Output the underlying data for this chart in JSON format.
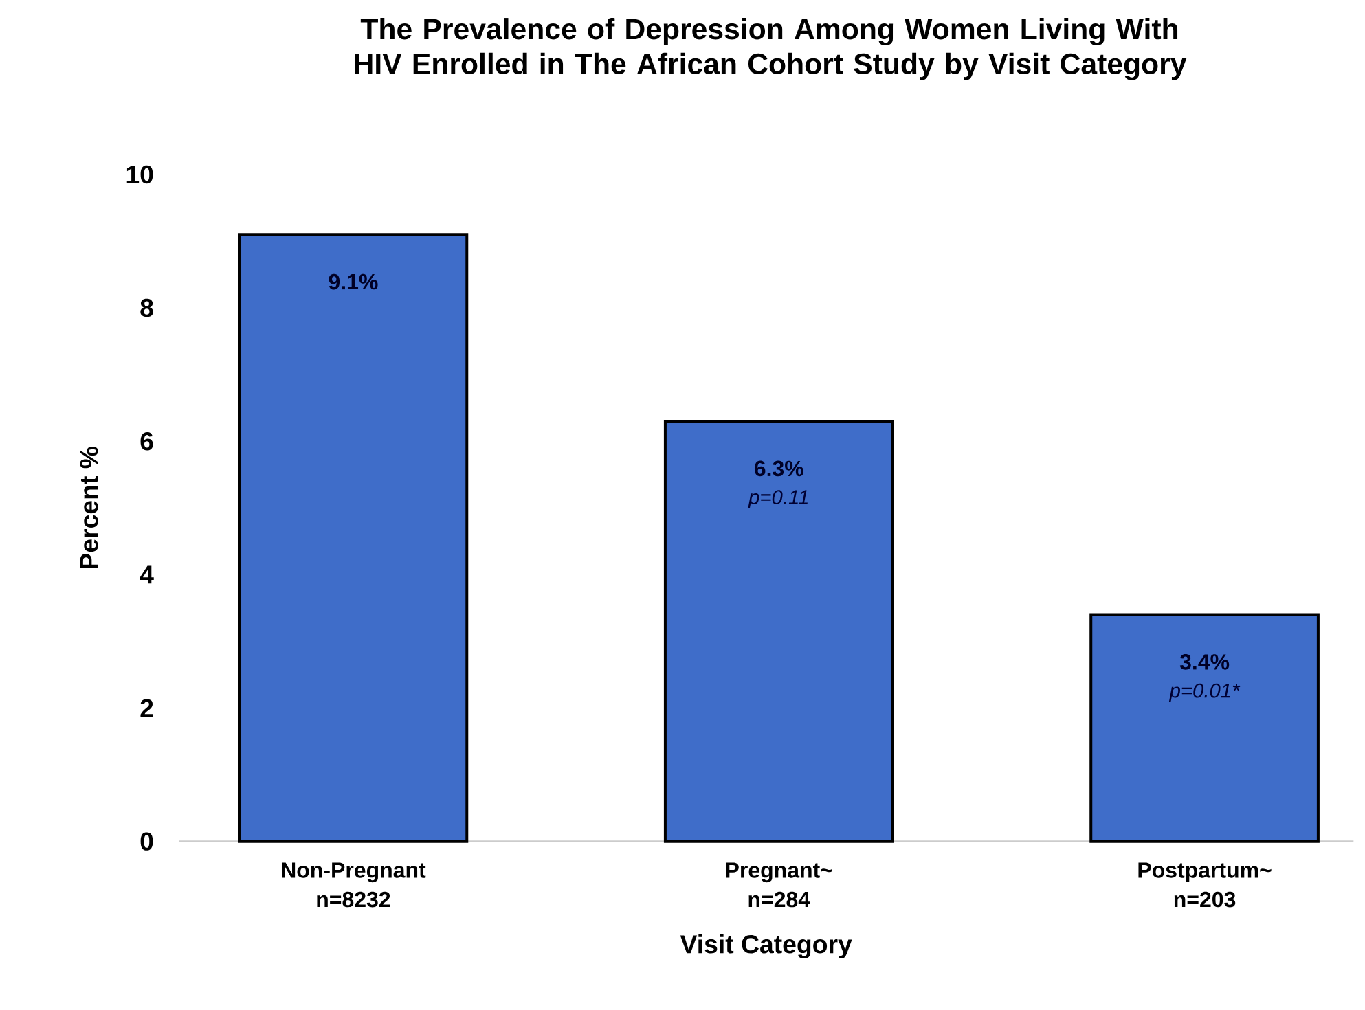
{
  "chart_data": {
    "type": "bar",
    "title": "The Prevalence of Depression Among Women Living With HIV Enrolled in The African Cohort Study by Visit Category",
    "xlabel": "Visit Category",
    "ylabel": "Percent %",
    "categories": [
      "Non-Pregnant n=8232",
      "Pregnant~ n=284",
      "Postpartum~ n=203"
    ],
    "values": [
      9.1,
      6.3,
      3.4
    ],
    "value_labels": [
      "9.1%",
      "6.3%",
      "3.4%"
    ],
    "color": "#3f6dc9",
    "annotations": [
      "p=0.11",
      "p=0.01*"
    ],
    "ylim": [
      0,
      10
    ],
    "yticks": [
      0,
      2,
      4,
      6,
      8,
      10
    ],
    "grid": false
  }
}
